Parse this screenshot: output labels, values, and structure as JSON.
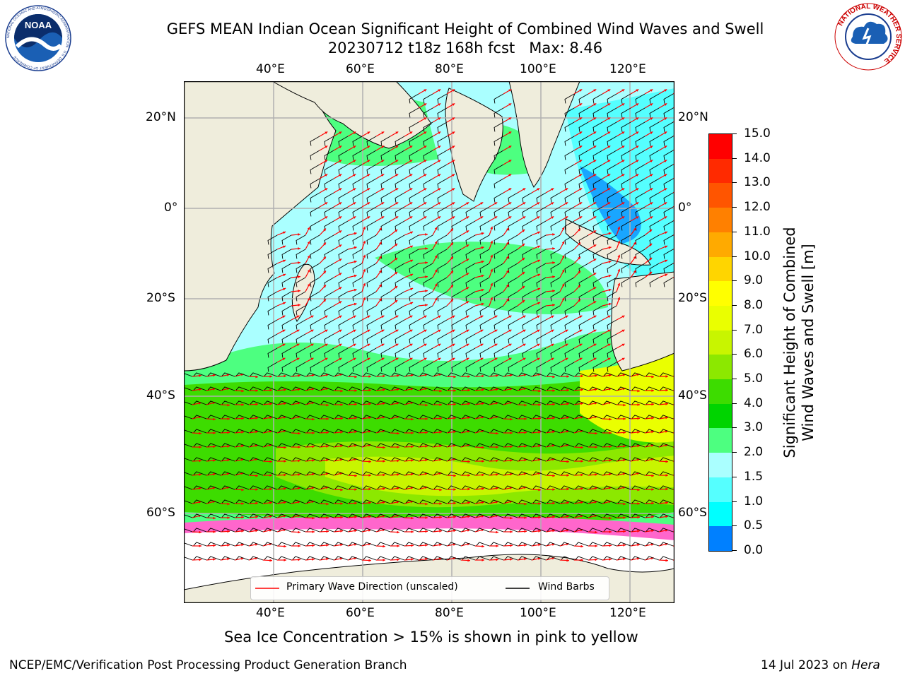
{
  "title": {
    "line1": "GEFS MEAN Indian Ocean Significant Height of Combined Wind Waves and Swell",
    "line2": "20230712 t18z 168h fcst   Max: 8.46"
  },
  "logos": {
    "noaa_text": "NOAA",
    "nws_ring_text": "NATIONAL WEATHER SERVICE",
    "noaa_ring_text": "NATIONAL OCEANIC AND ATMOSPHERIC ADMINISTRATION · U.S. DEPARTMENT OF COMMERCE"
  },
  "map": {
    "lon_labels": [
      "40°E",
      "60°E",
      "80°E",
      "100°E",
      "120°E"
    ],
    "lat_labels_left": [
      "20°N",
      "0°",
      "20°S",
      "40°S",
      "60°S"
    ],
    "lat_labels_right": [
      "20°N",
      "0°",
      "20°S",
      "40°S",
      "60°S"
    ],
    "colors": {
      "land": "#efeddc",
      "ice": "#ffffff",
      "grid": "#b0b0b0",
      "arrow": "#ff0000",
      "barb": "#000000"
    }
  },
  "legend": {
    "wave_label": "Primary Wave Direction (unscaled)",
    "barb_label": "Wind Barbs"
  },
  "colorbar": {
    "label_line1": "Significant Height of Combined",
    "label_line2": "Wind Waves and Swell [m]",
    "ticks": [
      "15.0",
      "14.0",
      "13.0",
      "12.0",
      "11.0",
      "10.0",
      "9.0",
      "8.0",
      "7.0",
      "6.0",
      "5.0",
      "4.0",
      "3.0",
      "2.0",
      "1.5",
      "1.0",
      "0.5",
      "0.0"
    ],
    "colors": [
      "#ff0000",
      "#ff2a00",
      "#ff5500",
      "#ff8000",
      "#ffaa00",
      "#ffd500",
      "#ffff00",
      "#eaff00",
      "#c8f500",
      "#8ce800",
      "#3ddc00",
      "#00d400",
      "#4dff80",
      "#aaffff",
      "#55ffff",
      "#00ffff",
      "#0080ff",
      "#0000ff"
    ]
  },
  "caption": "Sea Ice Concentration > 15% is shown in pink to yellow",
  "footer": {
    "left": "NCEP/EMC/Verification Post Processing Product Generation Branch",
    "date": "14 Jul 2023 on ",
    "host": "Hera"
  }
}
